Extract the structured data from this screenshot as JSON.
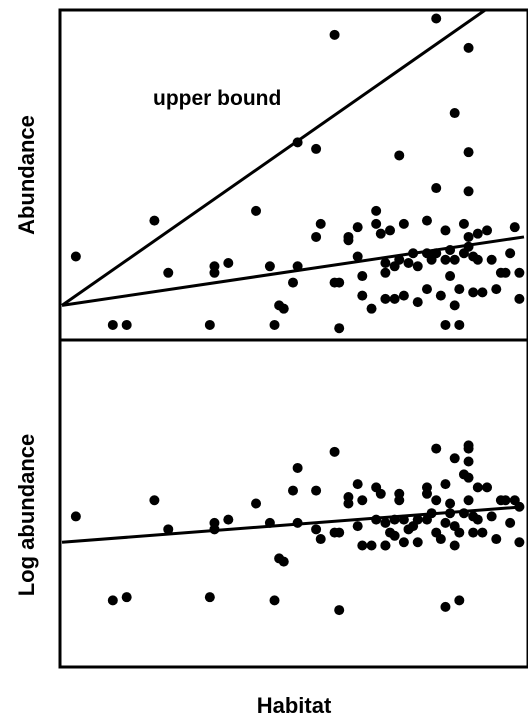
{
  "chart_data": [
    {
      "type": "scatter",
      "title": "",
      "xlabel": "",
      "ylabel": "Abundance",
      "xlim": [
        0,
        100
      ],
      "ylim": [
        0,
        100
      ],
      "grid": false,
      "annotations": [
        {
          "text": "upper bound"
        }
      ],
      "points": [
        [
          3,
          25
        ],
        [
          11,
          4
        ],
        [
          14,
          4
        ],
        [
          20,
          36
        ],
        [
          23,
          20
        ],
        [
          32,
          4
        ],
        [
          33,
          20
        ],
        [
          33,
          22
        ],
        [
          36,
          23
        ],
        [
          42,
          39
        ],
        [
          45,
          22
        ],
        [
          46,
          4
        ],
        [
          47,
          10
        ],
        [
          48,
          9
        ],
        [
          50,
          17
        ],
        [
          51,
          22
        ],
        [
          51,
          60
        ],
        [
          55,
          58
        ],
        [
          55,
          31
        ],
        [
          56,
          35
        ],
        [
          59,
          17
        ],
        [
          59,
          93
        ],
        [
          60,
          3
        ],
        [
          60,
          17
        ],
        [
          62,
          31
        ],
        [
          62,
          30
        ],
        [
          64,
          34
        ],
        [
          64,
          25
        ],
        [
          65,
          19
        ],
        [
          65,
          13
        ],
        [
          67,
          9
        ],
        [
          68,
          39
        ],
        [
          68,
          35
        ],
        [
          69,
          32
        ],
        [
          70,
          12
        ],
        [
          70,
          23
        ],
        [
          70,
          20
        ],
        [
          71,
          33
        ],
        [
          72,
          12
        ],
        [
          72,
          22
        ],
        [
          73,
          56
        ],
        [
          73,
          24
        ],
        [
          74,
          35
        ],
        [
          74,
          13
        ],
        [
          75,
          23
        ],
        [
          76,
          26
        ],
        [
          77,
          11
        ],
        [
          77,
          22
        ],
        [
          79,
          26
        ],
        [
          79,
          15
        ],
        [
          79,
          36
        ],
        [
          80,
          24
        ],
        [
          81,
          26
        ],
        [
          81,
          98
        ],
        [
          81,
          46
        ],
        [
          82,
          13
        ],
        [
          83,
          24
        ],
        [
          83,
          33
        ],
        [
          83,
          4
        ],
        [
          84,
          19
        ],
        [
          84,
          27
        ],
        [
          85,
          24
        ],
        [
          85,
          69
        ],
        [
          85,
          10
        ],
        [
          86,
          4
        ],
        [
          86,
          15
        ],
        [
          87,
          26
        ],
        [
          87,
          35
        ],
        [
          88,
          57
        ],
        [
          88,
          31
        ],
        [
          88,
          89
        ],
        [
          88,
          45
        ],
        [
          89,
          14
        ],
        [
          89,
          25
        ],
        [
          88,
          28
        ],
        [
          90,
          32
        ],
        [
          90,
          24
        ],
        [
          91,
          14
        ],
        [
          92,
          33
        ],
        [
          93,
          24
        ],
        [
          94,
          15
        ],
        [
          95,
          20
        ],
        [
          96,
          20
        ],
        [
          97,
          26
        ],
        [
          98,
          34
        ],
        [
          99,
          20
        ],
        [
          99,
          12
        ]
      ],
      "fit_line": {
        "x": [
          0,
          100
        ],
        "y": [
          10,
          31
        ]
      },
      "upper_bound_line": {
        "x": [
          0,
          92
        ],
        "y": [
          10,
          101
        ]
      }
    },
    {
      "type": "scatter",
      "title": "",
      "xlabel": "Habitat",
      "ylabel": "Log abundance",
      "xlim": [
        0,
        100
      ],
      "ylim": [
        0,
        100
      ],
      "grid": false,
      "points": [
        [
          3,
          46
        ],
        [
          11,
          20
        ],
        [
          14,
          21
        ],
        [
          20,
          51
        ],
        [
          23,
          42
        ],
        [
          32,
          21
        ],
        [
          33,
          44
        ],
        [
          33,
          42
        ],
        [
          36,
          45
        ],
        [
          42,
          50
        ],
        [
          45,
          44
        ],
        [
          46,
          20
        ],
        [
          47,
          33
        ],
        [
          48,
          32
        ],
        [
          50,
          54
        ],
        [
          51,
          44
        ],
        [
          51,
          61
        ],
        [
          55,
          54
        ],
        [
          55,
          42
        ],
        [
          56,
          39
        ],
        [
          59,
          41
        ],
        [
          59,
          66
        ],
        [
          60,
          17
        ],
        [
          60,
          41
        ],
        [
          62,
          50
        ],
        [
          62,
          52
        ],
        [
          64,
          56
        ],
        [
          64,
          43
        ],
        [
          65,
          51
        ],
        [
          65,
          37
        ],
        [
          67,
          37
        ],
        [
          68,
          55
        ],
        [
          68,
          45
        ],
        [
          69,
          53
        ],
        [
          70,
          37
        ],
        [
          70,
          44
        ],
        [
          70,
          37
        ],
        [
          71,
          41
        ],
        [
          72,
          40
        ],
        [
          72,
          45
        ],
        [
          73,
          53
        ],
        [
          73,
          51
        ],
        [
          74,
          45
        ],
        [
          74,
          38
        ],
        [
          75,
          42
        ],
        [
          76,
          43
        ],
        [
          77,
          38
        ],
        [
          77,
          45
        ],
        [
          79,
          45
        ],
        [
          79,
          53
        ],
        [
          79,
          55
        ],
        [
          80,
          47
        ],
        [
          81,
          41
        ],
        [
          81,
          67
        ],
        [
          81,
          51
        ],
        [
          82,
          39
        ],
        [
          83,
          44
        ],
        [
          83,
          56
        ],
        [
          83,
          18
        ],
        [
          84,
          47
        ],
        [
          84,
          50
        ],
        [
          85,
          43
        ],
        [
          85,
          64
        ],
        [
          85,
          37
        ],
        [
          86,
          20
        ],
        [
          86,
          41
        ],
        [
          87,
          47
        ],
        [
          87,
          59
        ],
        [
          88,
          68
        ],
        [
          88,
          58
        ],
        [
          88,
          67
        ],
        [
          88,
          63
        ],
        [
          89,
          41
        ],
        [
          89,
          46
        ],
        [
          88,
          51
        ],
        [
          90,
          55
        ],
        [
          90,
          45
        ],
        [
          91,
          41
        ],
        [
          92,
          55
        ],
        [
          93,
          46
        ],
        [
          94,
          39
        ],
        [
          95,
          51
        ],
        [
          96,
          51
        ],
        [
          97,
          44
        ],
        [
          98,
          51
        ],
        [
          99,
          49
        ],
        [
          99,
          38
        ]
      ],
      "fit_line": {
        "x": [
          0,
          100
        ],
        "y": [
          38,
          49
        ]
      }
    }
  ]
}
